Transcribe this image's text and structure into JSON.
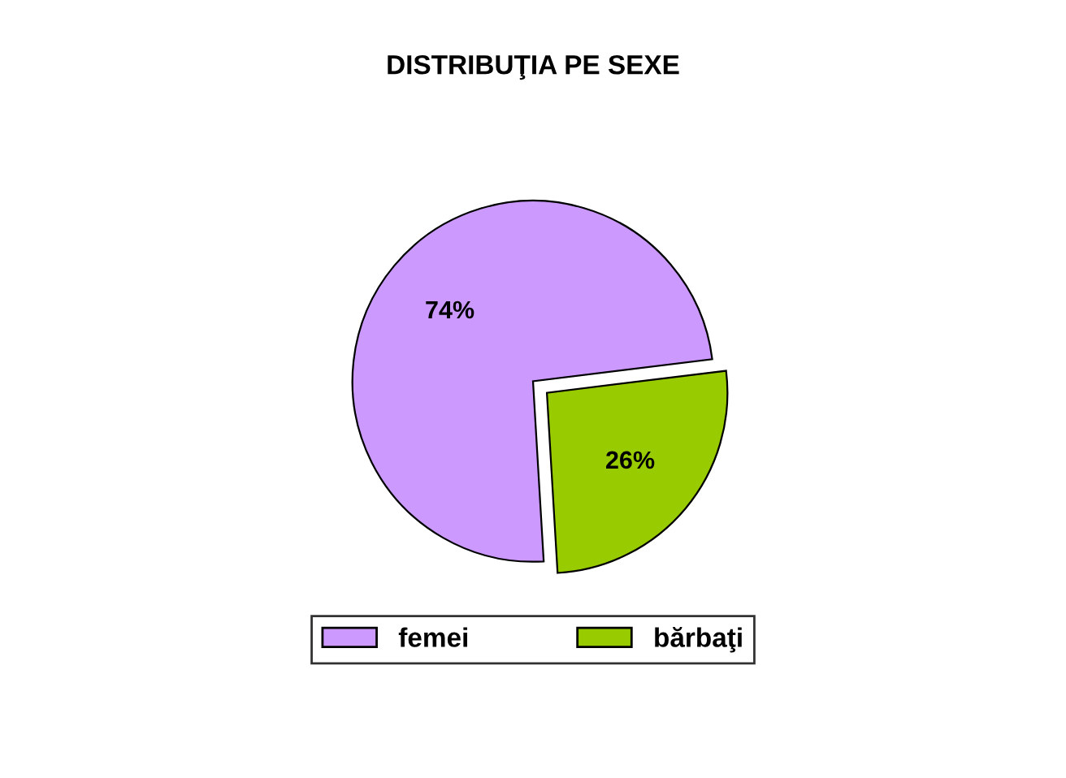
{
  "chart_data": {
    "type": "pie",
    "title": "DISTRIBUŢIA PE SEXE",
    "categories": [
      "femei",
      "bărbaţi"
    ],
    "values": [
      74,
      26
    ],
    "colors": [
      "#cc99ff",
      "#99cc00"
    ],
    "value_labels": [
      "74%",
      "26%"
    ],
    "legend": "bottom"
  }
}
